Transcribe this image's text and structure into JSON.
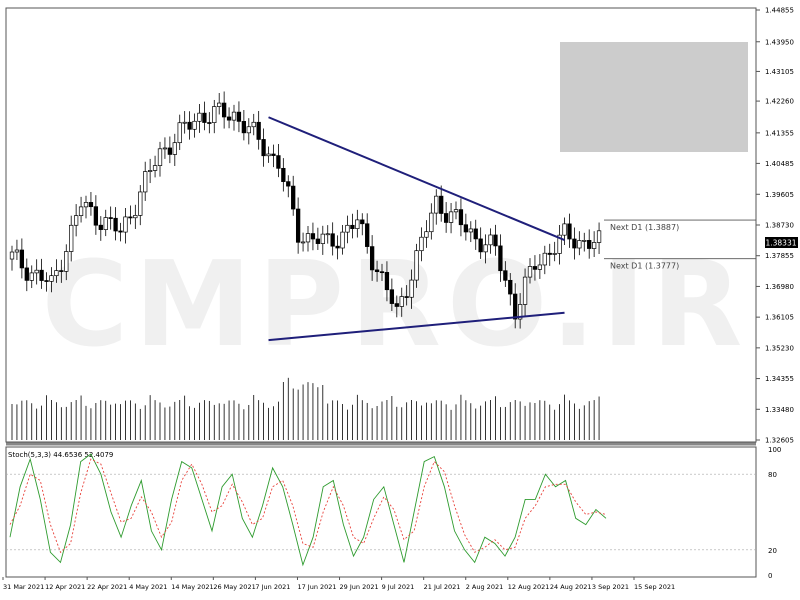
{
  "watermark": "CMPRO.IR",
  "chart_data": [
    {
      "type": "candlestick",
      "symbol_price": "1.38331",
      "y_ticks": [
        "1.44855",
        "1.43950",
        "1.43105",
        "1.42260",
        "1.41355",
        "1.40485",
        "1.39605",
        "1.38730",
        "1.37855",
        "1.36980",
        "1.36105",
        "1.35230",
        "1.34355",
        "1.33480",
        "1.32605"
      ],
      "ylim": [
        1.32605,
        1.44855
      ],
      "x_ticks": [
        "31 Mar 2021",
        "12 Apr 2021",
        "22 Apr 2021",
        "4 May 2021",
        "14 May 2021",
        "26 May 2021",
        "7 Jun 2021",
        "17 Jun 2021",
        "29 Jun 2021",
        "9 Jul 2021",
        "21 Jul 2021",
        "2 Aug 2021",
        "12 Aug 2021",
        "24 Aug 2021",
        "3 Sep 2021",
        "15 Sep 2021"
      ],
      "levels": [
        {
          "label": "Next D1 (1.3887)",
          "value": 1.3887
        },
        {
          "label": "Next D1 (1.3777)",
          "value": 1.3777
        }
      ],
      "trendlines": [
        {
          "from_bar": 52,
          "from_value": 1.418,
          "to_bar": 112,
          "to_value": 1.383
        },
        {
          "from_bar": 52,
          "from_value": 1.3545,
          "to_bar": 112,
          "to_value": 1.3623
        }
      ],
      "key_points": [
        {
          "bar": 0,
          "close": 1.378
        },
        {
          "bar": 8,
          "close": 1.37
        },
        {
          "bar": 14,
          "close": 1.393
        },
        {
          "bar": 22,
          "close": 1.385
        },
        {
          "bar": 30,
          "close": 1.408
        },
        {
          "bar": 38,
          "close": 1.4185
        },
        {
          "bar": 45,
          "close": 1.419
        },
        {
          "bar": 54,
          "close": 1.405
        },
        {
          "bar": 58,
          "close": 1.385
        },
        {
          "bar": 64,
          "close": 1.382
        },
        {
          "bar": 70,
          "close": 1.388
        },
        {
          "bar": 78,
          "close": 1.362
        },
        {
          "bar": 86,
          "close": 1.394
        },
        {
          "bar": 92,
          "close": 1.386
        },
        {
          "bar": 98,
          "close": 1.38
        },
        {
          "bar": 102,
          "close": 1.363
        },
        {
          "bar": 106,
          "close": 1.376
        },
        {
          "bar": 112,
          "close": 1.384
        },
        {
          "bar": 118,
          "close": 1.382
        }
      ],
      "bar_count": 120
    },
    {
      "type": "line",
      "indicator_label": "Stoch(5,3,3) 44.6536 52.4079",
      "y_ticks": [
        "100",
        "80",
        "20",
        "0"
      ],
      "ylim": [
        0,
        100
      ],
      "series": [
        {
          "color": "#2e9b2e",
          "values": [
            30,
            70,
            92,
            60,
            18,
            10,
            40,
            90,
            96,
            80,
            50,
            30,
            55,
            75,
            35,
            20,
            60,
            90,
            85,
            60,
            35,
            70,
            80,
            45,
            30,
            55,
            85,
            70,
            40,
            8,
            30,
            70,
            75,
            40,
            15,
            30,
            60,
            70,
            40,
            10,
            50,
            90,
            94,
            70,
            35,
            20,
            10,
            30,
            25,
            15,
            30,
            60,
            60,
            80,
            70,
            75,
            45,
            40,
            52,
            45
          ]
        },
        {
          "color": "#e8413a",
          "values": [
            40,
            55,
            80,
            75,
            40,
            18,
            25,
            65,
            92,
            88,
            65,
            42,
            45,
            62,
            50,
            30,
            42,
            75,
            88,
            72,
            50,
            55,
            72,
            58,
            40,
            45,
            70,
            75,
            55,
            25,
            22,
            50,
            70,
            55,
            30,
            25,
            45,
            62,
            52,
            28,
            35,
            70,
            90,
            82,
            55,
            32,
            18,
            22,
            28,
            20,
            22,
            45,
            55,
            70,
            72,
            72,
            58,
            48,
            50,
            48
          ]
        }
      ]
    }
  ]
}
